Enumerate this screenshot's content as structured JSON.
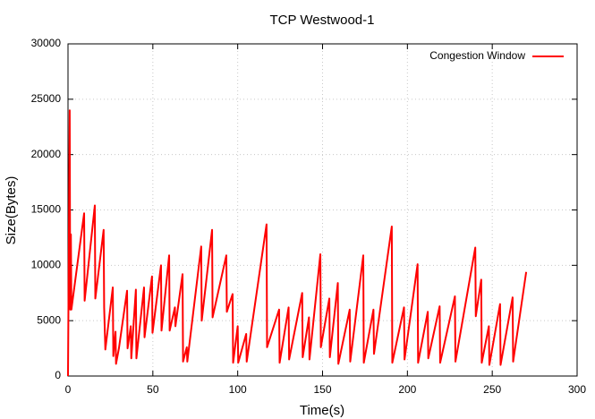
{
  "chart_data": {
    "type": "line",
    "title": "TCP Westwood-1",
    "xlabel": "Time(s)",
    "ylabel": "Size(Bytes)",
    "x": [
      0,
      1,
      1.3,
      1.7,
      2,
      9.5,
      9.8,
      15.8,
      16.1,
      21,
      21.3,
      22,
      26.4,
      26.7,
      28,
      28.3,
      30,
      34.8,
      35.1,
      37,
      37.3,
      40,
      40.3,
      44.8,
      45.1,
      49.5,
      49.8,
      54.8,
      55.1,
      59.6,
      59.9,
      63,
      63.3,
      67.5,
      67.8,
      70,
      70.3,
      78.5,
      78.8,
      84.9,
      85.2,
      93.3,
      93.6,
      97,
      97.3,
      100,
      100.3,
      105,
      105.3,
      117,
      117.3,
      124.4,
      124.7,
      130,
      130.3,
      138,
      138.3,
      142,
      142.3,
      148.7,
      149,
      154,
      154.3,
      159,
      159.3,
      166,
      166.3,
      174,
      174.3,
      180,
      180.3,
      190.8,
      191.1,
      198,
      198.3,
      206,
      206.3,
      212,
      212.3,
      219,
      219.3,
      228,
      228.3,
      240,
      240.3,
      243.5,
      243.8,
      248,
      248.3,
      254.6,
      254.9,
      262,
      262.3,
      270
    ],
    "series": [
      {
        "name": "Congestion Window",
        "color": "#ff0000",
        "values": [
          0,
          24000,
          6000,
          12800,
          6000,
          14700,
          6800,
          15400,
          7000,
          13200,
          6200,
          2400,
          8000,
          1800,
          4000,
          1100,
          2500,
          7700,
          2500,
          4500,
          1600,
          7800,
          1600,
          8000,
          3500,
          9000,
          3900,
          10000,
          4100,
          10900,
          4100,
          6200,
          4500,
          9200,
          1300,
          2600,
          1300,
          11700,
          5000,
          13200,
          5300,
          10900,
          5800,
          7400,
          1200,
          4500,
          1200,
          3800,
          1300,
          13700,
          2600,
          6000,
          1200,
          6200,
          1500,
          7500,
          1700,
          5300,
          1500,
          11000,
          2600,
          7000,
          1700,
          8400,
          1100,
          6000,
          1300,
          10900,
          1200,
          6000,
          2000,
          13500,
          1200,
          6200,
          1500,
          10100,
          1200,
          5800,
          1600,
          6300,
          1200,
          7200,
          1300,
          11600,
          5400,
          8700,
          1200,
          4500,
          1000,
          6500,
          1000,
          7100,
          1300,
          9400
        ]
      }
    ],
    "xlim": [
      0,
      300
    ],
    "xticks": [
      0,
      50,
      100,
      150,
      200,
      250,
      300
    ],
    "ylim": [
      0,
      30000
    ],
    "yticks": [
      0,
      5000,
      10000,
      15000,
      20000,
      25000,
      30000
    ],
    "grid": true,
    "legend": "top-right"
  }
}
